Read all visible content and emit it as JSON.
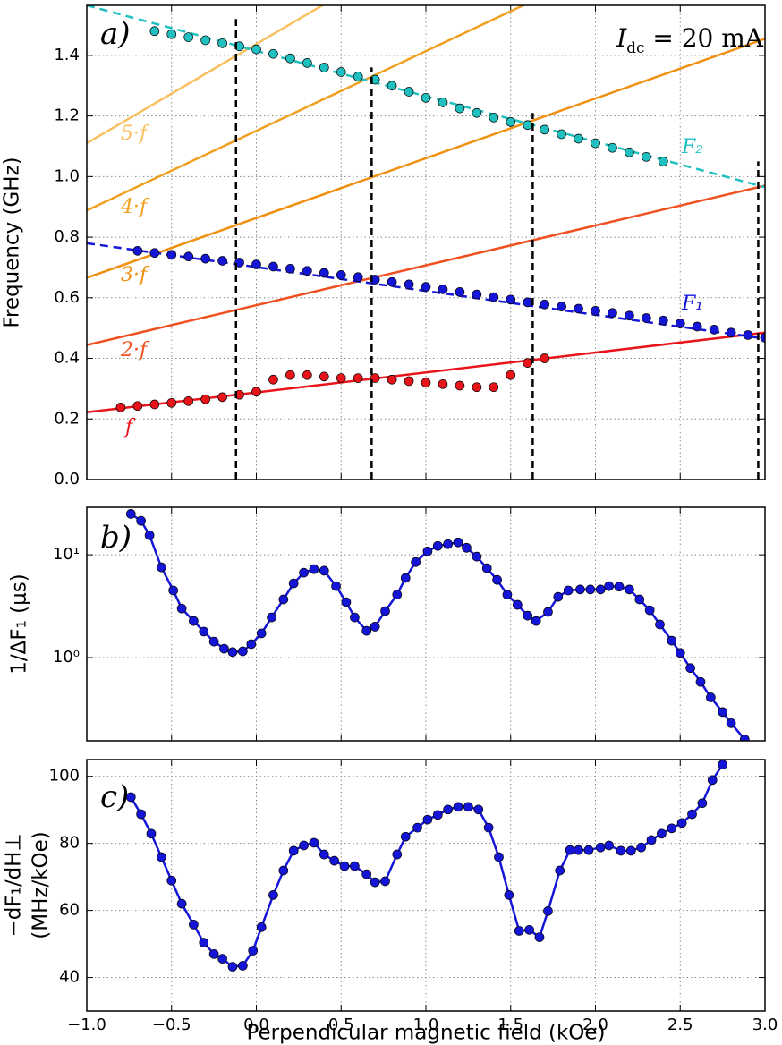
{
  "chart_data": [
    {
      "type": "line",
      "ylabel": "Frequency (GHz)",
      "grid": true,
      "xlim": [
        -1,
        3
      ],
      "xticks": [
        -1,
        -0.5,
        0,
        0.5,
        1,
        1.5,
        2,
        2.5,
        3
      ],
      "ylim": [
        0,
        1.565
      ],
      "yticks": [
        {
          "value": 0,
          "label": "0.0"
        },
        {
          "value": 0.2,
          "label": "0.2"
        },
        {
          "value": 0.4,
          "label": "0.4"
        },
        {
          "value": 0.6,
          "label": "0.6"
        },
        {
          "value": 0.8,
          "label": "0.8"
        },
        {
          "value": 1.0,
          "label": "1.0"
        },
        {
          "value": 1.2,
          "label": "1.2"
        },
        {
          "value": 1.4,
          "label": "1.4"
        }
      ],
      "annotations": [
        {
          "text": "a)",
          "color": "#000000"
        },
        {
          "text": "I",
          "sub": "dc",
          "after": " = 20 mA",
          "color": "#000000"
        },
        {
          "text": "5·f",
          "color": "#f8c060"
        },
        {
          "text": "4·f",
          "color": "#f0a020"
        },
        {
          "text": "3·f",
          "color": "#f09010"
        },
        {
          "text": "2·f",
          "color": "#f05020"
        },
        {
          "text": "f",
          "color": "#e8141a"
        },
        {
          "text": "F₂",
          "color": "#20c0c0"
        },
        {
          "text": "F₁",
          "color": "#1515d8"
        }
      ],
      "vlines": [
        {
          "x": -0.12,
          "top": 1.52
        },
        {
          "x": 0.68,
          "top": 1.36
        },
        {
          "x": 1.63,
          "top": 1.21
        },
        {
          "x": 2.96,
          "top": 1.05
        }
      ],
      "series": [
        {
          "style": "line",
          "color": "#f8c060",
          "x": [
            -1,
            3
          ],
          "values": [
            1.11,
            2.42
          ]
        },
        {
          "style": "line",
          "color": "#f0a020",
          "x": [
            -1,
            3
          ],
          "values": [
            0.888,
            1.94
          ]
        },
        {
          "style": "line",
          "color": "#f09010",
          "x": [
            -1,
            3
          ],
          "values": [
            0.666,
            1.455
          ]
        },
        {
          "style": "line",
          "color": "#f05020",
          "x": [
            -1,
            3
          ],
          "values": [
            0.444,
            0.97
          ]
        },
        {
          "style": "line",
          "color": "#e8141a",
          "x": [
            -1,
            3
          ],
          "values": [
            0.222,
            0.485
          ]
        },
        {
          "style": "dashed",
          "color": "#20c0c0",
          "x": [
            -1,
            3
          ],
          "values": [
            1.565,
            0.965
          ]
        },
        {
          "style": "dashed",
          "color": "#1515d8",
          "x": [
            -1,
            3
          ],
          "values": [
            0.78,
            0.465
          ]
        },
        {
          "style": "markers",
          "color": "#20c0c0",
          "x": [
            -0.6,
            -0.5,
            -0.4,
            -0.3,
            -0.2,
            -0.1,
            0.0,
            0.1,
            0.2,
            0.3,
            0.4,
            0.5,
            0.6,
            0.7,
            0.8,
            0.9,
            1.0,
            1.1,
            1.2,
            1.3,
            1.4,
            1.5,
            1.6,
            1.7,
            1.8,
            1.9,
            2.0,
            2.1,
            2.2,
            2.3,
            2.4
          ],
          "values": [
            1.48,
            1.47,
            1.46,
            1.45,
            1.44,
            1.43,
            1.42,
            1.405,
            1.39,
            1.375,
            1.36,
            1.345,
            1.33,
            1.32,
            1.3,
            1.28,
            1.26,
            1.245,
            1.225,
            1.21,
            1.195,
            1.18,
            1.17,
            1.155,
            1.14,
            1.125,
            1.11,
            1.095,
            1.08,
            1.065,
            1.05
          ]
        },
        {
          "style": "markers",
          "color": "#1515d8",
          "x": [
            -0.7,
            -0.6,
            -0.5,
            -0.4,
            -0.3,
            -0.2,
            -0.1,
            0.0,
            0.1,
            0.2,
            0.3,
            0.4,
            0.5,
            0.6,
            0.7,
            0.8,
            0.9,
            1.0,
            1.1,
            1.2,
            1.3,
            1.4,
            1.5,
            1.6,
            1.7,
            1.8,
            1.9,
            2.0,
            2.1,
            2.2,
            2.3,
            2.4,
            2.5,
            2.6,
            2.7,
            2.8,
            2.9,
            3.0
          ],
          "values": [
            0.755,
            0.748,
            0.742,
            0.736,
            0.729,
            0.722,
            0.716,
            0.71,
            0.703,
            0.696,
            0.689,
            0.682,
            0.675,
            0.668,
            0.66,
            0.652,
            0.644,
            0.636,
            0.628,
            0.619,
            0.611,
            0.602,
            0.594,
            0.585,
            0.578,
            0.571,
            0.564,
            0.557,
            0.55,
            0.541,
            0.533,
            0.525,
            0.515,
            0.505,
            0.495,
            0.485,
            0.477,
            0.468
          ]
        },
        {
          "style": "markers",
          "color": "#e8141a",
          "x": [
            -0.8,
            -0.7,
            -0.6,
            -0.5,
            -0.4,
            -0.3,
            -0.2,
            -0.1,
            0.0,
            0.1,
            0.2,
            0.3,
            0.4,
            0.5,
            0.6,
            0.7,
            0.8,
            0.9,
            1.0,
            1.1,
            1.2,
            1.3,
            1.4,
            1.5,
            1.6,
            1.7
          ],
          "values": [
            0.238,
            0.243,
            0.248,
            0.253,
            0.259,
            0.265,
            0.272,
            0.28,
            0.29,
            0.33,
            0.345,
            0.345,
            0.34,
            0.335,
            0.335,
            0.335,
            0.33,
            0.325,
            0.32,
            0.315,
            0.31,
            0.305,
            0.305,
            0.345,
            0.385,
            0.4
          ]
        }
      ]
    },
    {
      "type": "line",
      "ylabel": "1/ΔF₁ (μs)",
      "grid": true,
      "log": true,
      "xlim": [
        -1,
        3
      ],
      "xticks": [
        -1,
        -0.5,
        0,
        0.5,
        1,
        1.5,
        2,
        2.5,
        3
      ],
      "ylim": [
        0.155,
        29
      ],
      "yticks": [
        {
          "value": 1,
          "label": "10⁰"
        },
        {
          "value": 10,
          "label": "10¹"
        }
      ],
      "annotations": [
        {
          "text": "b)",
          "color": "#000000"
        }
      ],
      "series": [
        {
          "style": "line-markers",
          "color": "#1515d8",
          "x": [
            -0.74,
            -0.68,
            -0.63,
            -0.56,
            -0.49,
            -0.44,
            -0.37,
            -0.31,
            -0.25,
            -0.19,
            -0.14,
            -0.08,
            -0.03,
            0.03,
            0.09,
            0.16,
            0.22,
            0.28,
            0.34,
            0.4,
            0.47,
            0.53,
            0.58,
            0.65,
            0.7,
            0.76,
            0.83,
            0.88,
            0.94,
            1.01,
            1.07,
            1.13,
            1.19,
            1.24,
            1.3,
            1.36,
            1.42,
            1.48,
            1.54,
            1.6,
            1.65,
            1.72,
            1.78,
            1.84,
            1.91,
            1.97,
            2.03,
            2.08,
            2.14,
            2.2,
            2.26,
            2.32,
            2.38,
            2.45,
            2.5,
            2.56,
            2.62,
            2.68,
            2.75,
            2.8,
            2.88
          ],
          "values": [
            25,
            21.4,
            15.5,
            7.55,
            4.5,
            3.0,
            2.27,
            1.79,
            1.43,
            1.22,
            1.13,
            1.15,
            1.35,
            1.72,
            2.46,
            3.68,
            5.27,
            6.7,
            7.25,
            7.0,
            4.96,
            3.46,
            2.46,
            1.82,
            2.0,
            2.83,
            4.1,
            5.95,
            8.5,
            10.8,
            12.2,
            12.7,
            13.2,
            11.7,
            9.6,
            7.4,
            5.7,
            4.1,
            3.26,
            2.56,
            2.27,
            2.78,
            3.9,
            4.5,
            4.6,
            4.6,
            4.6,
            4.96,
            4.9,
            4.6,
            3.68,
            2.89,
            2.1,
            1.46,
            1.11,
            0.79,
            0.58,
            0.41,
            0.295,
            0.23,
            0.16
          ]
        }
      ]
    },
    {
      "type": "line",
      "ylabel": [
        "−dF₁/dH⊥",
        "(MHz/kOe)"
      ],
      "xlabel": "Perpendicular magnetic field (kOe)",
      "grid": true,
      "xlim": [
        -1,
        3
      ],
      "xticks": [
        {
          "value": -1,
          "label": "−1.0"
        },
        {
          "value": -0.5,
          "label": "−0.5"
        },
        {
          "value": 0,
          "label": "0.0"
        },
        {
          "value": 0.5,
          "label": "0.5"
        },
        {
          "value": 1,
          "label": "1.0"
        },
        {
          "value": 1.5,
          "label": "1.5"
        },
        {
          "value": 2,
          "label": "2.0"
        },
        {
          "value": 2.5,
          "label": "2.5"
        },
        {
          "value": 3,
          "label": "3.0"
        }
      ],
      "ylim": [
        30,
        105
      ],
      "yticks": [
        40,
        60,
        80,
        100
      ],
      "annotations": [
        {
          "text": "c)",
          "color": "#000000"
        }
      ],
      "series": [
        {
          "style": "line-markers",
          "color": "#1515d8",
          "x": [
            -0.74,
            -0.68,
            -0.62,
            -0.56,
            -0.5,
            -0.44,
            -0.37,
            -0.31,
            -0.25,
            -0.2,
            -0.14,
            -0.08,
            -0.02,
            0.03,
            0.1,
            0.16,
            0.22,
            0.28,
            0.34,
            0.4,
            0.46,
            0.52,
            0.58,
            0.65,
            0.7,
            0.76,
            0.83,
            0.88,
            0.95,
            1.01,
            1.07,
            1.13,
            1.19,
            1.25,
            1.31,
            1.37,
            1.43,
            1.49,
            1.55,
            1.61,
            1.67,
            1.72,
            1.79,
            1.85,
            1.9,
            1.96,
            2.03,
            2.08,
            2.15,
            2.21,
            2.27,
            2.33,
            2.39,
            2.45,
            2.51,
            2.57,
            2.63,
            2.69,
            2.75
          ],
          "values": [
            93.8,
            88.7,
            82.9,
            75.9,
            68.9,
            62,
            55.8,
            50.4,
            47,
            45.6,
            43.2,
            43.5,
            48,
            55,
            64.6,
            71.9,
            77.8,
            79.4,
            80.2,
            76.7,
            74.8,
            73.2,
            73.2,
            70.8,
            68.4,
            68.7,
            76.7,
            82,
            84.7,
            87.1,
            88.5,
            90.1,
            90.9,
            90.9,
            90.1,
            84.7,
            75.9,
            64.6,
            53.9,
            54.2,
            52,
            59.8,
            71.9,
            78,
            78,
            78,
            78.8,
            79.4,
            77.8,
            77.8,
            78.8,
            81,
            82.9,
            84.5,
            86.1,
            88.7,
            92,
            98.9,
            103.5
          ]
        }
      ]
    }
  ]
}
